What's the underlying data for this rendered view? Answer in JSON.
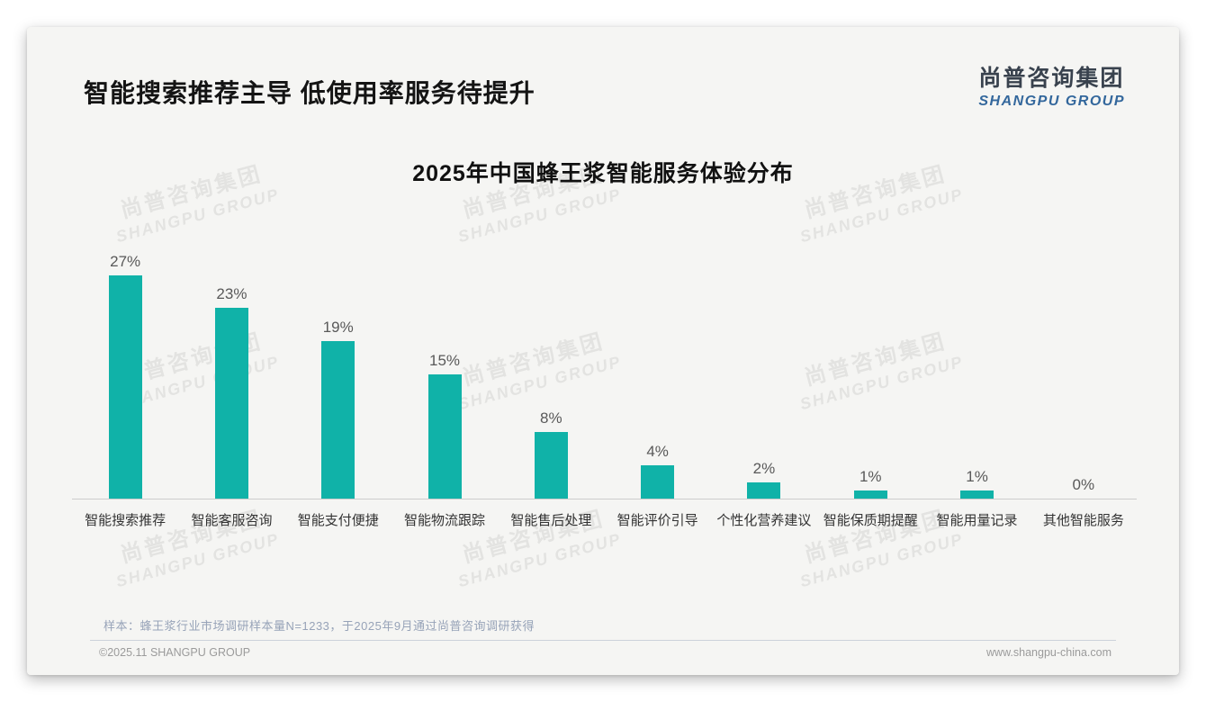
{
  "page": {
    "headline": "智能搜索推荐主导 低使用率服务待提升",
    "logo": {
      "cn": "尚普咨询集团",
      "en": "SHANGPU GROUP"
    },
    "watermark": {
      "cn": "尚普咨询集团",
      "en": "SHANGPU GROUP"
    },
    "note": "样本：蜂王浆行业市场调研样本量N=1233，于2025年9月通过尚普咨询调研获得",
    "footer": {
      "left": "©2025.11 SHANGPU GROUP",
      "right": "www.shangpu-china.com"
    }
  },
  "chart_data": {
    "type": "bar",
    "title": "2025年中国蜂王浆智能服务体验分布",
    "categories": [
      "智能搜索推荐",
      "智能客服咨询",
      "智能支付便捷",
      "智能物流跟踪",
      "智能售后处理",
      "智能评价引导",
      "个性化营养建议",
      "智能保质期提醒",
      "智能用量记录",
      "其他智能服务"
    ],
    "values": [
      27,
      23,
      19,
      15,
      8,
      4,
      2,
      1,
      1,
      0
    ],
    "value_labels": [
      "27%",
      "23%",
      "19%",
      "15%",
      "8%",
      "4%",
      "2%",
      "1%",
      "1%",
      "0%"
    ],
    "unit": "%",
    "bar_color": "#10b2a8",
    "ylim": [
      0,
      30
    ],
    "grid": false,
    "legend": "none",
    "value_label_position": "above",
    "baseline_color": "#cccccc"
  }
}
